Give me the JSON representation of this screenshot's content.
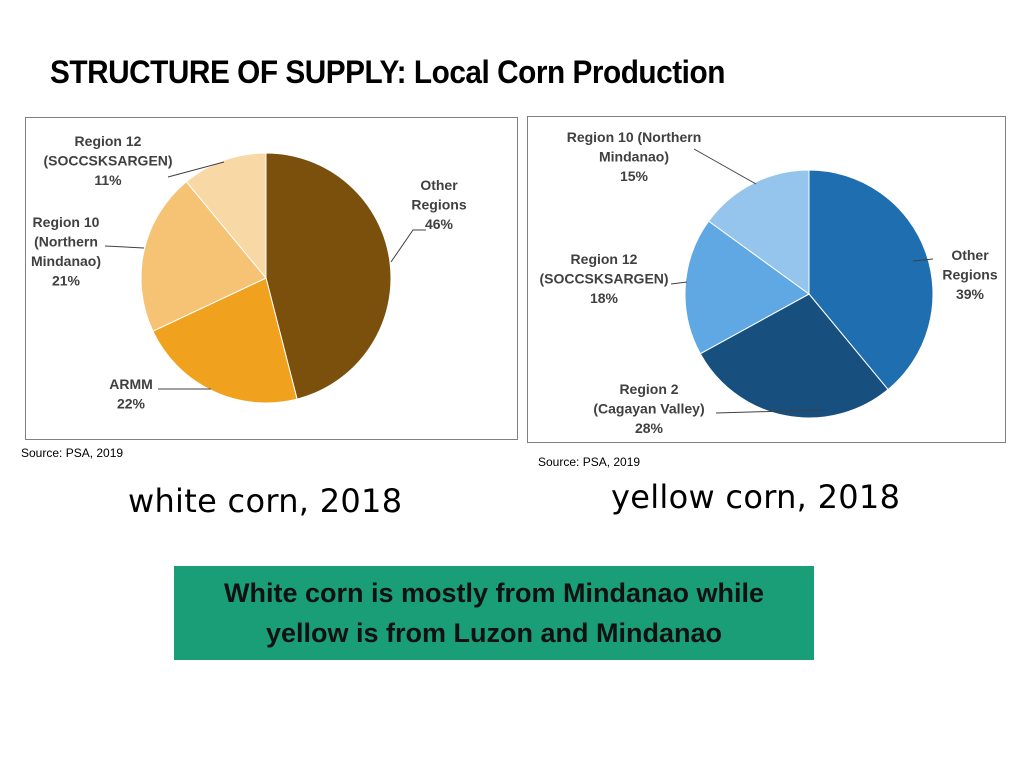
{
  "title": "STRUCTURE OF SUPPLY: Local Corn Production",
  "chart_data": [
    {
      "type": "pie",
      "name": "white corn, 2018",
      "categories": [
        "Other Regions",
        "ARMM",
        "Region 10 (Northern Mindanao)",
        "Region 12 (SOCCSKSARGEN)"
      ],
      "values": [
        46,
        22,
        21,
        11
      ],
      "unit": "%",
      "colors": [
        "#7b4f0c",
        "#f0a21f",
        "#f6c375",
        "#f8d8a5"
      ],
      "labels": [
        {
          "lines": [
            "Other",
            "Regions",
            "46%"
          ]
        },
        {
          "lines": [
            "ARMM",
            "22%"
          ]
        },
        {
          "lines": [
            "Region 10",
            "(Northern",
            "Mindanao)",
            "21%"
          ]
        },
        {
          "lines": [
            "Region 12",
            "(SOCCSKSARGEN)",
            "11%"
          ]
        }
      ],
      "source": "Source: PSA, 2019"
    },
    {
      "type": "pie",
      "name": "yellow corn, 2018",
      "categories": [
        "Other Regions",
        "Region 2 (Cagayan Valley)",
        "Region 12 (SOCCSKSARGEN)",
        "Region 10 (Northern Mindanao)"
      ],
      "values": [
        39,
        28,
        18,
        15
      ],
      "unit": "%",
      "colors": [
        "#1f6fb0",
        "#174f7e",
        "#5fa8e3",
        "#95c5ec"
      ],
      "labels": [
        {
          "lines": [
            "Other",
            "Regions",
            "39%"
          ]
        },
        {
          "lines": [
            "Region 2",
            "(Cagayan Valley)",
            "28%"
          ]
        },
        {
          "lines": [
            "Region 12",
            "(SOCCSKSARGEN)",
            "18%"
          ]
        },
        {
          "lines": [
            "Region 10 (Northern",
            "Mindanao)",
            "15%"
          ]
        }
      ],
      "source": "Source: PSA, 2019"
    }
  ],
  "captions": {
    "white": "white corn, 2018",
    "yellow": "yellow corn, 2018"
  },
  "callout": "White corn is mostly from Mindanao while yellow is from Luzon and Mindanao"
}
